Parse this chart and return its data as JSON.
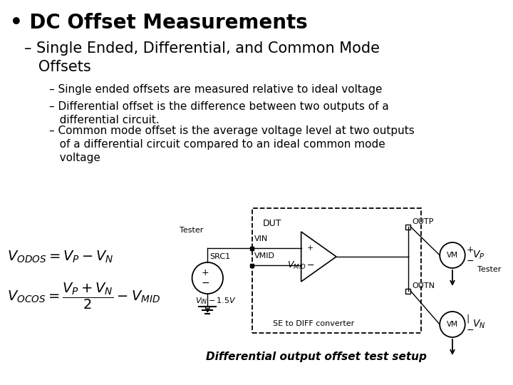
{
  "background_color": "#ffffff",
  "title_bullet": "• DC Offset Measurements",
  "title_fontsize": 20,
  "subtitle": "– Single Ended, Differential, and Common Mode\n   Offsets",
  "subtitle_fontsize": 15,
  "bullet1": "– Single ended offsets are measured relative to ideal voltage",
  "bullet2": "– Differential offset is the difference between two outputs of a\n   differential circuit.",
  "bullet3": "– Common mode offset is the average voltage level at two outputs\n   of a differential circuit compared to an ideal common mode\n   voltage",
  "caption": "Differential output offset test setup",
  "caption_fontsize": 10,
  "bullet_fontsize": 11,
  "eq_fontsize": 12
}
